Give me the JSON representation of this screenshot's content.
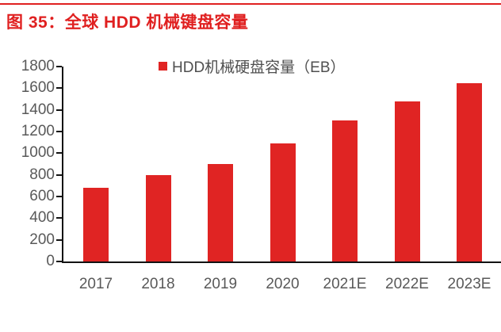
{
  "header": {
    "title": "图 35：全球 HDD 机械键盘容量"
  },
  "colors": {
    "accent_red": "#e02423",
    "rule_red": "#e02020",
    "axis_line": "#121212",
    "axis_text": "#595959",
    "legend_text": "#4f4f4f"
  },
  "chart_data": {
    "type": "bar",
    "title": "图 35：全球 HDD 机械键盘容量",
    "legend": [
      "HDD机械硬盘容量（EB）"
    ],
    "legend_position": "top-center",
    "legend_marker": "red-square",
    "categories": [
      "2017",
      "2018",
      "2019",
      "2020",
      "2021E",
      "2022E",
      "2023E"
    ],
    "values": [
      680,
      800,
      900,
      1090,
      1300,
      1480,
      1650
    ],
    "unit": "EB",
    "xlabel": "",
    "ylabel": "",
    "ylim": [
      0,
      1800
    ],
    "ytick_step": 200,
    "yticks": [
      0,
      200,
      400,
      600,
      800,
      1000,
      1200,
      1400,
      1600,
      1800
    ],
    "grid": false,
    "bar_color": "#e02423",
    "background": "#ffffff"
  }
}
